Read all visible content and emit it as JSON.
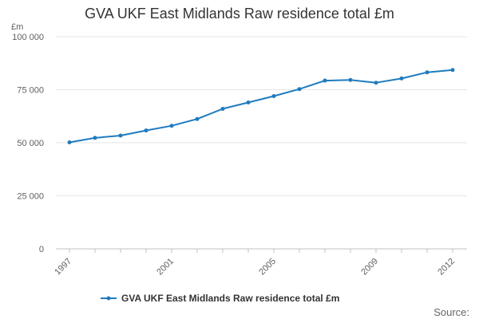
{
  "chart_data": {
    "type": "line",
    "title": "GVA UKF East Midlands Raw residence total £m",
    "ylabel": "£m",
    "xlabel": "",
    "ylim": [
      0,
      100000
    ],
    "yticks": [
      0,
      25000,
      50000,
      75000,
      100000
    ],
    "ytick_labels": [
      "0",
      "25 000",
      "50 000",
      "75 000",
      "100 000"
    ],
    "xlim": [
      1997,
      2012
    ],
    "xticks": [
      1997,
      2001,
      2005,
      2009,
      2012
    ],
    "xtick_labels": [
      "1997",
      "2001",
      "2005",
      "2009",
      "2012"
    ],
    "grid": true,
    "legend_position": "bottom",
    "series": [
      {
        "name": "GVA UKF East Midlands Raw residence total £m",
        "color": "#1f7bbf",
        "x": [
          1997,
          1998,
          1999,
          2000,
          2001,
          2002,
          2003,
          2004,
          2005,
          2006,
          2007,
          2008,
          2009,
          2010,
          2011,
          2012
        ],
        "y": [
          50200,
          52300,
          53400,
          55800,
          58000,
          61200,
          66000,
          69000,
          72000,
          75300,
          79300,
          79600,
          78300,
          80300,
          83200,
          84300
        ]
      }
    ]
  },
  "source_label": "Source:"
}
